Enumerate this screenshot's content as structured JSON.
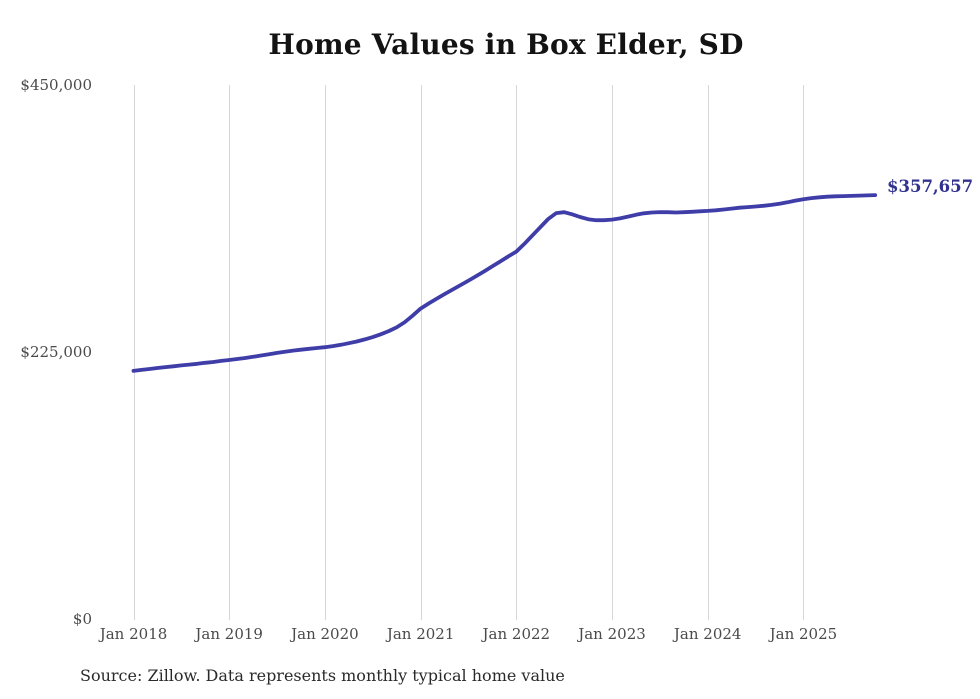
{
  "chart_data": {
    "type": "line",
    "title": "Home Values in Box Elder, SD",
    "xlabel": "",
    "ylabel": "",
    "ylim": [
      0,
      450000
    ],
    "y_tick_labels": [
      "$450,000",
      "$225,000",
      "$0"
    ],
    "x_tick_labels": [
      "Jan 2018",
      "Jan 2019",
      "Jan 2020",
      "Jan 2021",
      "Jan 2022",
      "Jan 2023",
      "Jan 2024",
      "Jan 2025"
    ],
    "x_start": "2018-01",
    "frequency": "monthly",
    "grid": "vertical-only",
    "legend": "none",
    "line_color": "#3f3da8",
    "end_label": "$357,657",
    "end_value": 357657,
    "series": [
      {
        "name": "Typical home value",
        "values": [
          209500,
          210300,
          211100,
          211900,
          212700,
          213400,
          214100,
          214800,
          215500,
          216300,
          217000,
          217900,
          218700,
          219500,
          220400,
          221400,
          222500,
          223600,
          224700,
          225700,
          226600,
          227400,
          228100,
          228800,
          229500,
          230400,
          231500,
          232800,
          234300,
          236000,
          238000,
          240300,
          243000,
          246200,
          250500,
          256000,
          262000,
          266300,
          270300,
          274200,
          278000,
          281800,
          285600,
          289500,
          293500,
          297600,
          301800,
          306000,
          310000,
          316500,
          323500,
          330500,
          337500,
          342500,
          343200,
          341500,
          339200,
          337300,
          336500,
          336500,
          337000,
          338000,
          339500,
          341000,
          342300,
          343000,
          343300,
          343200,
          343000,
          343200,
          343600,
          344000,
          344300,
          344800,
          345500,
          346300,
          347000,
          347500,
          348000,
          348600,
          349400,
          350400,
          351600,
          353000,
          354200,
          355100,
          355800,
          356300,
          356600,
          356800,
          357000,
          357200,
          357400,
          357657
        ]
      }
    ]
  },
  "footer": {
    "source": "Source: Zillow. Data represents monthly typical home value"
  }
}
